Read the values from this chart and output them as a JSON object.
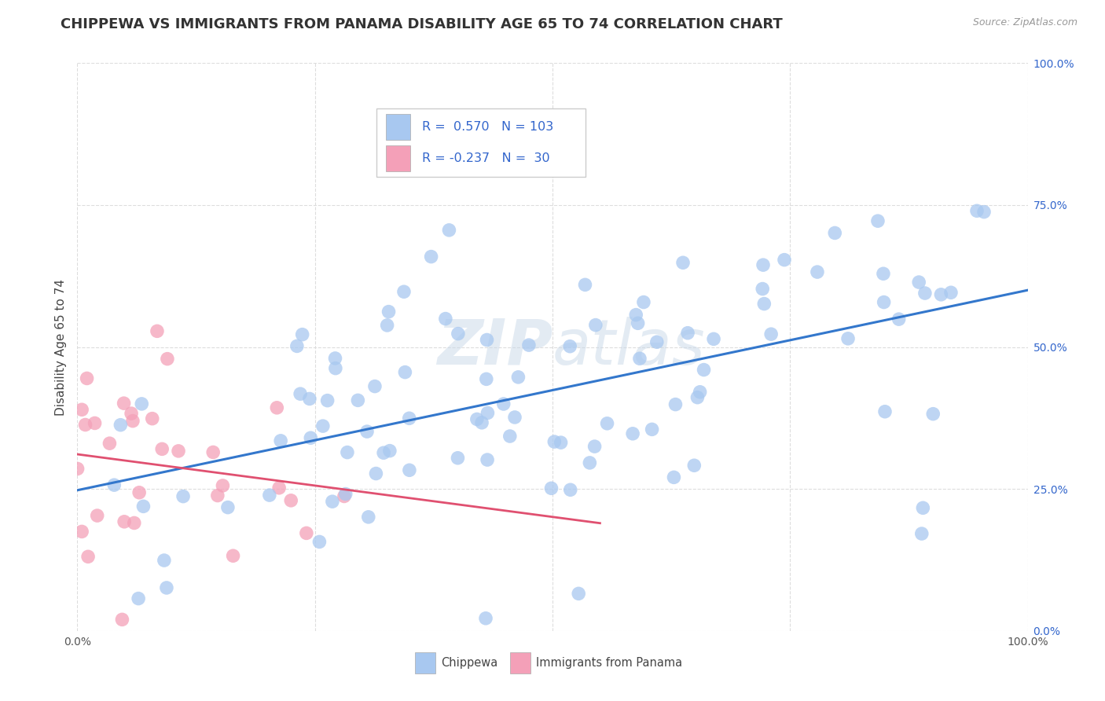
{
  "title": "CHIPPEWA VS IMMIGRANTS FROM PANAMA DISABILITY AGE 65 TO 74 CORRELATION CHART",
  "source_text": "Source: ZipAtlas.com",
  "ylabel": "Disability Age 65 to 74",
  "xlim": [
    0,
    1
  ],
  "ylim": [
    0,
    1
  ],
  "xticks": [
    0.0,
    0.25,
    0.5,
    0.75,
    1.0
  ],
  "xticklabels": [
    "0.0%",
    "",
    "",
    "",
    "100.0%"
  ],
  "yticks": [
    0.0,
    0.25,
    0.5,
    0.75,
    1.0
  ],
  "yticklabels_right": [
    "0.0%",
    "25.0%",
    "50.0%",
    "75.0%",
    "100.0%"
  ],
  "chippewa_color": "#a8c8f0",
  "panama_color": "#f4a0b8",
  "trend_blue": "#3377cc",
  "trend_pink": "#e05070",
  "legend_R1": "0.570",
  "legend_N1": "103",
  "legend_R2": "-0.237",
  "legend_N2": "30",
  "label1": "Chippewa",
  "label2": "Immigrants from Panama",
  "watermark": "ZIPatlas",
  "background_color": "#ffffff",
  "grid_color": "#dddddd",
  "title_fontsize": 13,
  "axis_label_fontsize": 11,
  "tick_fontsize": 10,
  "legend_text_color": "#3366cc",
  "source_color": "#999999"
}
